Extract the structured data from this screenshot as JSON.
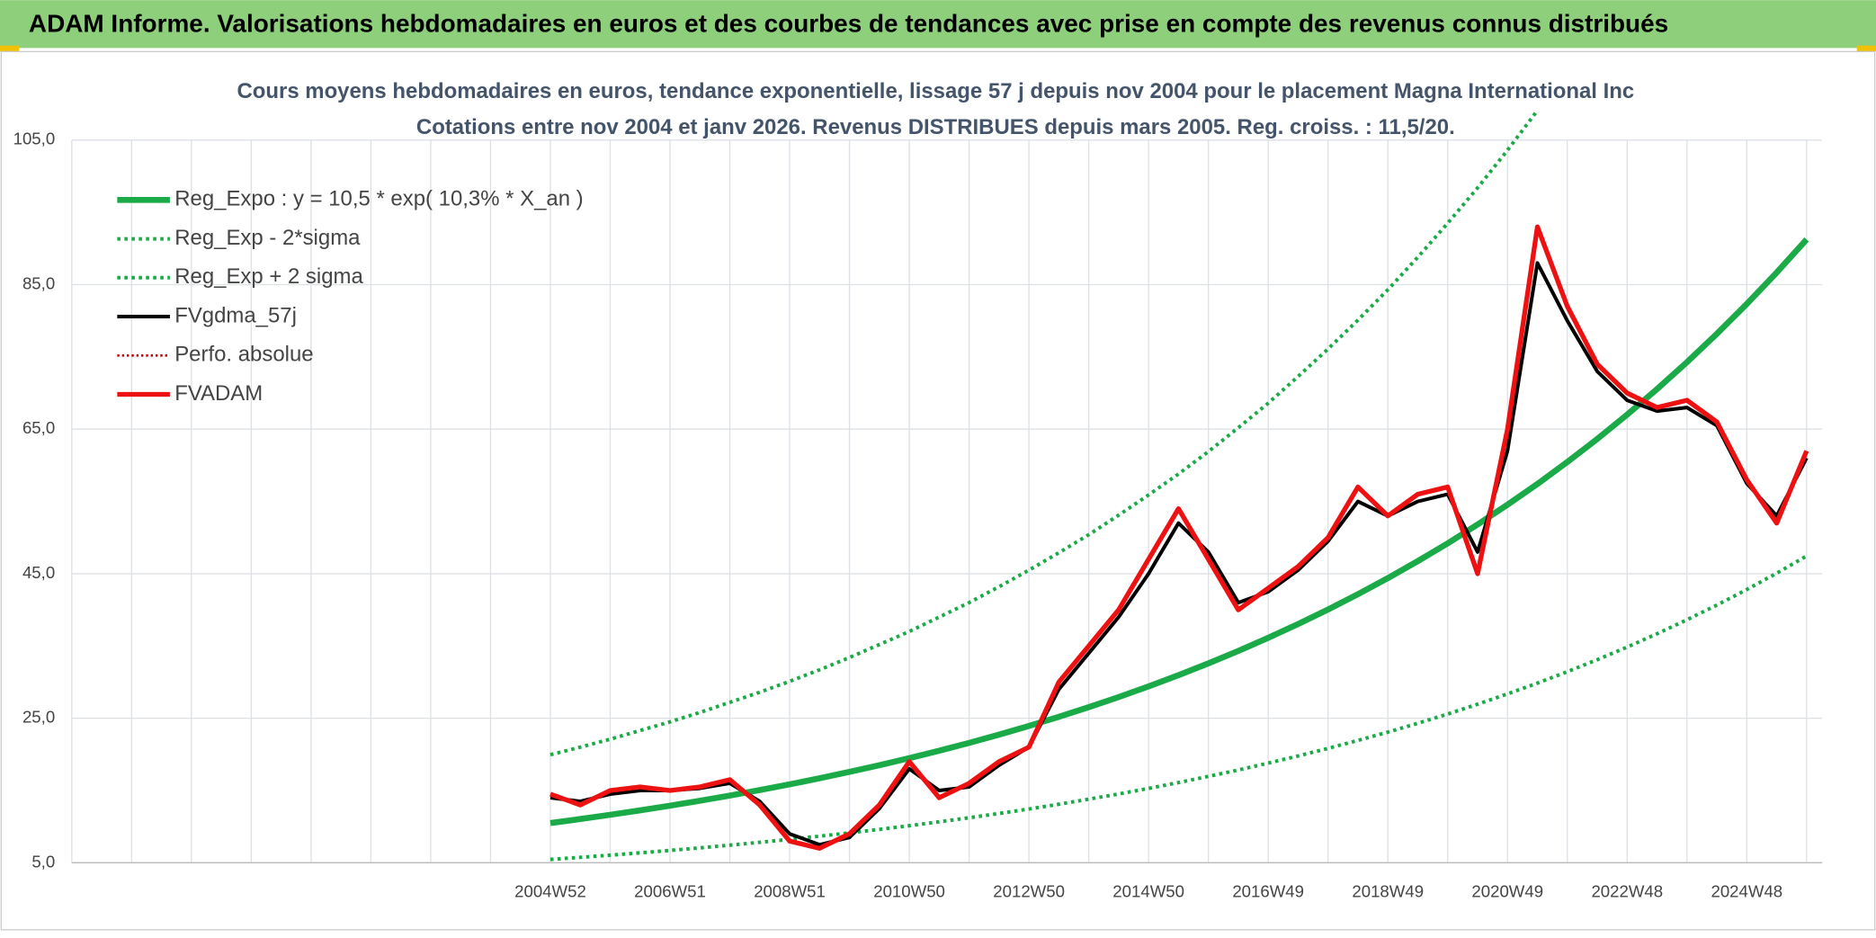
{
  "chart_data": {
    "type": "line",
    "title": "ADAM Informe. Valorisations hebdomadaires en euros et des courbes de tendances avec prise en compte des revenus connus distribués",
    "subtitle": [
      "Cours moyens hebdomadaires en euros, tendance exponentielle, lissage 57 j depuis nov 2004 pour le placement Magna International Inc",
      "Cotations entre nov 2004 et janv 2026. Revenus DISTRIBUES depuis mars 2005. Reg. croiss. : 11,5/20."
    ],
    "categories": [
      null,
      null,
      null,
      null,
      null,
      null,
      null,
      null,
      null,
      null,
      null,
      null,
      null,
      null,
      null,
      null,
      "2004W52",
      null,
      null,
      null,
      "2006W51",
      null,
      null,
      null,
      "2008W51",
      null,
      null,
      null,
      "2010W50",
      null,
      null,
      null,
      "2012W50",
      null,
      null,
      null,
      "2014W50",
      null,
      null,
      null,
      "2016W49",
      null,
      null,
      null,
      "2018W49",
      null,
      null,
      null,
      "2020W49",
      null,
      null,
      null,
      "2022W48",
      null,
      null,
      null,
      "2024W48",
      null,
      null
    ],
    "ylim": [
      5,
      105
    ],
    "yticks": [
      {
        "value": 5,
        "label": "5,0"
      },
      {
        "value": 25,
        "label": "25,0"
      },
      {
        "value": 45,
        "label": "45,0"
      },
      {
        "value": 65,
        "label": "65,0"
      },
      {
        "value": 85,
        "label": "85,0"
      },
      {
        "value": 105,
        "label": "105,0"
      }
    ],
    "grid": true,
    "legend": "upper left",
    "series": [
      {
        "name": "Reg_Expo : y = 10,5 * exp( 10,3% *  X_an )",
        "color": "#1aaa48",
        "style": "solid",
        "width": 5,
        "values": [
          null,
          null,
          null,
          null,
          null,
          null,
          null,
          null,
          null,
          null,
          null,
          null,
          null,
          null,
          null,
          null,
          10.5,
          11.05,
          11.64,
          12.25,
          12.9,
          13.58,
          14.3,
          15.06,
          15.85,
          16.69,
          17.58,
          18.5,
          19.48,
          20.51,
          21.59,
          22.73,
          23.93,
          25.2,
          26.53,
          27.93,
          29.41,
          30.96,
          32.59,
          34.31,
          36.13,
          38.04,
          40.05,
          42.17,
          44.39,
          46.74,
          49.2,
          51.81,
          54.55,
          57.42,
          60.46,
          63.65,
          67.01,
          70.55,
          74.28,
          78.2,
          82.33,
          86.68,
          91.26
        ]
      },
      {
        "name": "Reg_Exp - 2*sigma",
        "color": "#1aaa48",
        "style": "dotted",
        "width": 3,
        "values": [
          null,
          null,
          null,
          null,
          null,
          null,
          null,
          null,
          null,
          null,
          null,
          null,
          null,
          null,
          null,
          null,
          5.46,
          5.75,
          6.05,
          6.37,
          6.71,
          7.06,
          7.44,
          7.83,
          8.24,
          8.68,
          9.14,
          9.62,
          10.13,
          10.67,
          11.23,
          11.82,
          12.44,
          13.1,
          13.8,
          14.52,
          15.29,
          16.1,
          16.95,
          17.84,
          18.79,
          19.78,
          20.83,
          21.93,
          23.08,
          24.3,
          25.58,
          26.94,
          28.37,
          29.86,
          31.44,
          33.1,
          34.85,
          36.69,
          38.63,
          40.66,
          42.81,
          45.07,
          47.46
        ]
      },
      {
        "name": "Reg_Exp + 2 sigma",
        "color": "#1aaa48",
        "style": "dotted",
        "width": 3,
        "values": [
          null,
          null,
          null,
          null,
          null,
          null,
          null,
          null,
          null,
          null,
          null,
          null,
          null,
          null,
          null,
          null,
          19.95,
          21.0,
          22.1,
          23.3,
          24.5,
          25.8,
          27.2,
          28.6,
          30.1,
          31.7,
          33.4,
          35.2,
          37.0,
          39.0,
          41.0,
          43.2,
          45.5,
          47.9,
          50.4,
          53.1,
          55.9,
          58.8,
          61.9,
          65.2,
          68.6,
          72.3,
          76.1,
          80.1,
          84.3,
          88.8,
          93.5,
          98.4,
          103.6,
          109.1,
          null,
          null,
          null,
          null,
          null,
          null,
          null,
          null,
          null
        ]
      },
      {
        "name": "FVgdma_57j",
        "color": "#000000",
        "style": "solid",
        "width": 3,
        "values": [
          null,
          null,
          null,
          null,
          null,
          null,
          null,
          null,
          null,
          null,
          null,
          null,
          null,
          null,
          null,
          null,
          14,
          13.5,
          14.5,
          15,
          15,
          15.3,
          16,
          13.5,
          9,
          7.5,
          8.5,
          12.5,
          18,
          15,
          15.5,
          18.5,
          21,
          29,
          34,
          39,
          45,
          52,
          48,
          41,
          42.5,
          45.5,
          49.5,
          55,
          53,
          55,
          56,
          48,
          62,
          88,
          80,
          73,
          69,
          67.5,
          68,
          65.5,
          57.5,
          53,
          61
        ]
      },
      {
        "name": "Perfo. absolue",
        "color": "#c00000",
        "style": "dotted",
        "width": 2,
        "values": [
          null,
          null,
          null,
          null,
          null,
          null,
          null,
          null,
          null,
          null,
          null,
          null,
          null,
          null,
          null,
          null,
          null,
          null,
          null,
          null,
          null,
          null,
          null,
          null,
          null,
          null,
          null,
          null,
          null,
          null,
          null,
          null,
          null,
          null,
          null,
          null,
          null,
          null,
          null,
          null,
          null,
          null,
          null,
          null,
          null,
          null,
          null,
          null,
          null,
          null,
          null,
          null,
          null,
          null,
          null,
          null,
          null,
          null,
          null
        ]
      },
      {
        "name": "FVADAM",
        "color": "#ee1111",
        "style": "solid",
        "width": 4,
        "values": [
          null,
          null,
          null,
          null,
          null,
          null,
          null,
          null,
          null,
          null,
          null,
          null,
          null,
          null,
          null,
          null,
          14.5,
          13,
          15,
          15.5,
          15,
          15.5,
          16.5,
          13,
          8,
          7,
          9,
          13,
          19,
          14,
          16,
          19,
          21,
          30,
          35,
          40,
          47,
          54,
          47,
          40,
          43,
          46,
          50,
          57,
          53,
          56,
          57,
          45,
          65,
          93,
          82,
          74,
          70,
          68,
          69,
          66,
          58,
          52,
          62
        ]
      }
    ]
  }
}
